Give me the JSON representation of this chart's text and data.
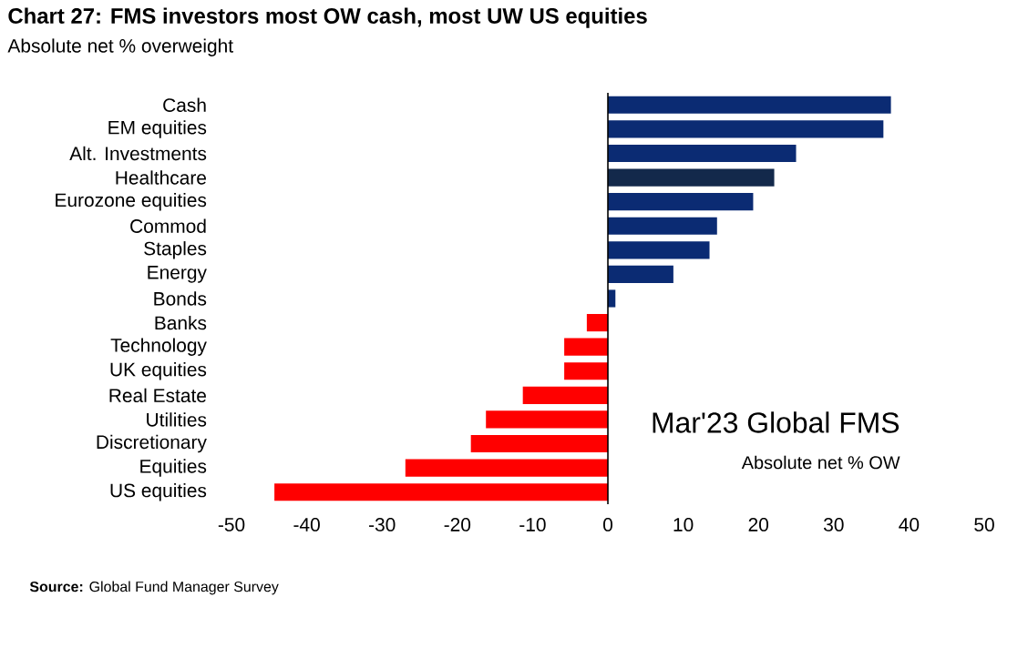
{
  "chart_data": {
    "type": "bar",
    "orientation": "horizontal",
    "title": "Chart 27: FMS investors most OW cash, most UW US equities",
    "subtitle": "Absolute net % overweight",
    "categories": [
      "Cash",
      "EM equities",
      "Alt. Investments",
      "Healthcare",
      "Eurozone equities",
      "Commod",
      "Staples",
      "Energy",
      "Bonds",
      "Banks",
      "Technology",
      "UK equities",
      "Real Estate",
      "Utilities",
      "Discretionary",
      "Equities",
      "US equities"
    ],
    "values": [
      37.6,
      36.6,
      25.0,
      22.1,
      19.3,
      14.5,
      13.5,
      8.7,
      1.0,
      -2.8,
      -5.8,
      -5.8,
      -11.3,
      -16.2,
      -18.2,
      -26.9,
      -44.3
    ],
    "colors": [
      "#0b2b73",
      "#0b2b73",
      "#0b2b73",
      "#13294b",
      "#0b2b73",
      "#0b2b73",
      "#0b2b73",
      "#0b2b73",
      "#0b2b73",
      "#ff0000",
      "#ff0000",
      "#ff0000",
      "#ff0000",
      "#ff0000",
      "#ff0000",
      "#ff0000",
      "#ff0000"
    ],
    "xlim": [
      -50,
      50
    ],
    "xticks": [
      -50,
      -40,
      -30,
      -20,
      -10,
      0,
      10,
      20,
      30,
      40,
      50
    ],
    "annotations": [
      "Mar'23 Global FMS",
      "Absolute net % OW",
      "**Source:**  Global Fund Manager Survey"
    ]
  }
}
